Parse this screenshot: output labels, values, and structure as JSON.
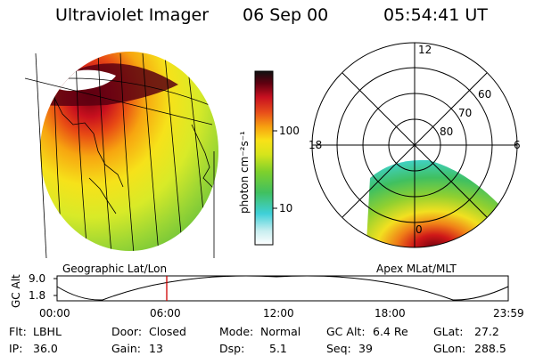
{
  "header": {
    "title": "Ultraviolet Imager",
    "date": "06 Sep 00",
    "time": "05:54:41 UT"
  },
  "colorbar": {
    "label": "photon cm⁻²s⁻¹",
    "tick_100": "100",
    "tick_10": "10"
  },
  "map_label": "Geographic Lat/Lon",
  "polar": {
    "label": "Apex MLat/MLT",
    "mlt_12": "12",
    "mlt_18": "18",
    "mlt_6": "6",
    "mlt_0": "0",
    "lat_60": "60",
    "lat_70": "70",
    "lat_80": "80"
  },
  "timeline": {
    "axis_label": "GC Alt",
    "y_max": "9.0",
    "y_min": "1.8",
    "ticks": [
      "00:00",
      "06:00",
      "12:00",
      "18:00",
      "23:59"
    ]
  },
  "info": {
    "flt_label": "Flt:",
    "flt_value": "LBHL",
    "ip_label": "IP:",
    "ip_value": "36.0",
    "door_label": "Door:",
    "door_value": "Closed",
    "gain_label": "Gain:",
    "gain_value": "13",
    "mode_label": "Mode:",
    "mode_value": "Normal",
    "dsp_label": "Dsp:",
    "dsp_value": "5.1",
    "gcalt_label": "GC Alt:",
    "gcalt_value": "6.4 Re",
    "seq_label": "Seq:",
    "seq_value": "39",
    "glat_label": "GLat:",
    "glat_value": "27.2",
    "glon_label": "GLon:",
    "glon_value": "288.5"
  }
}
